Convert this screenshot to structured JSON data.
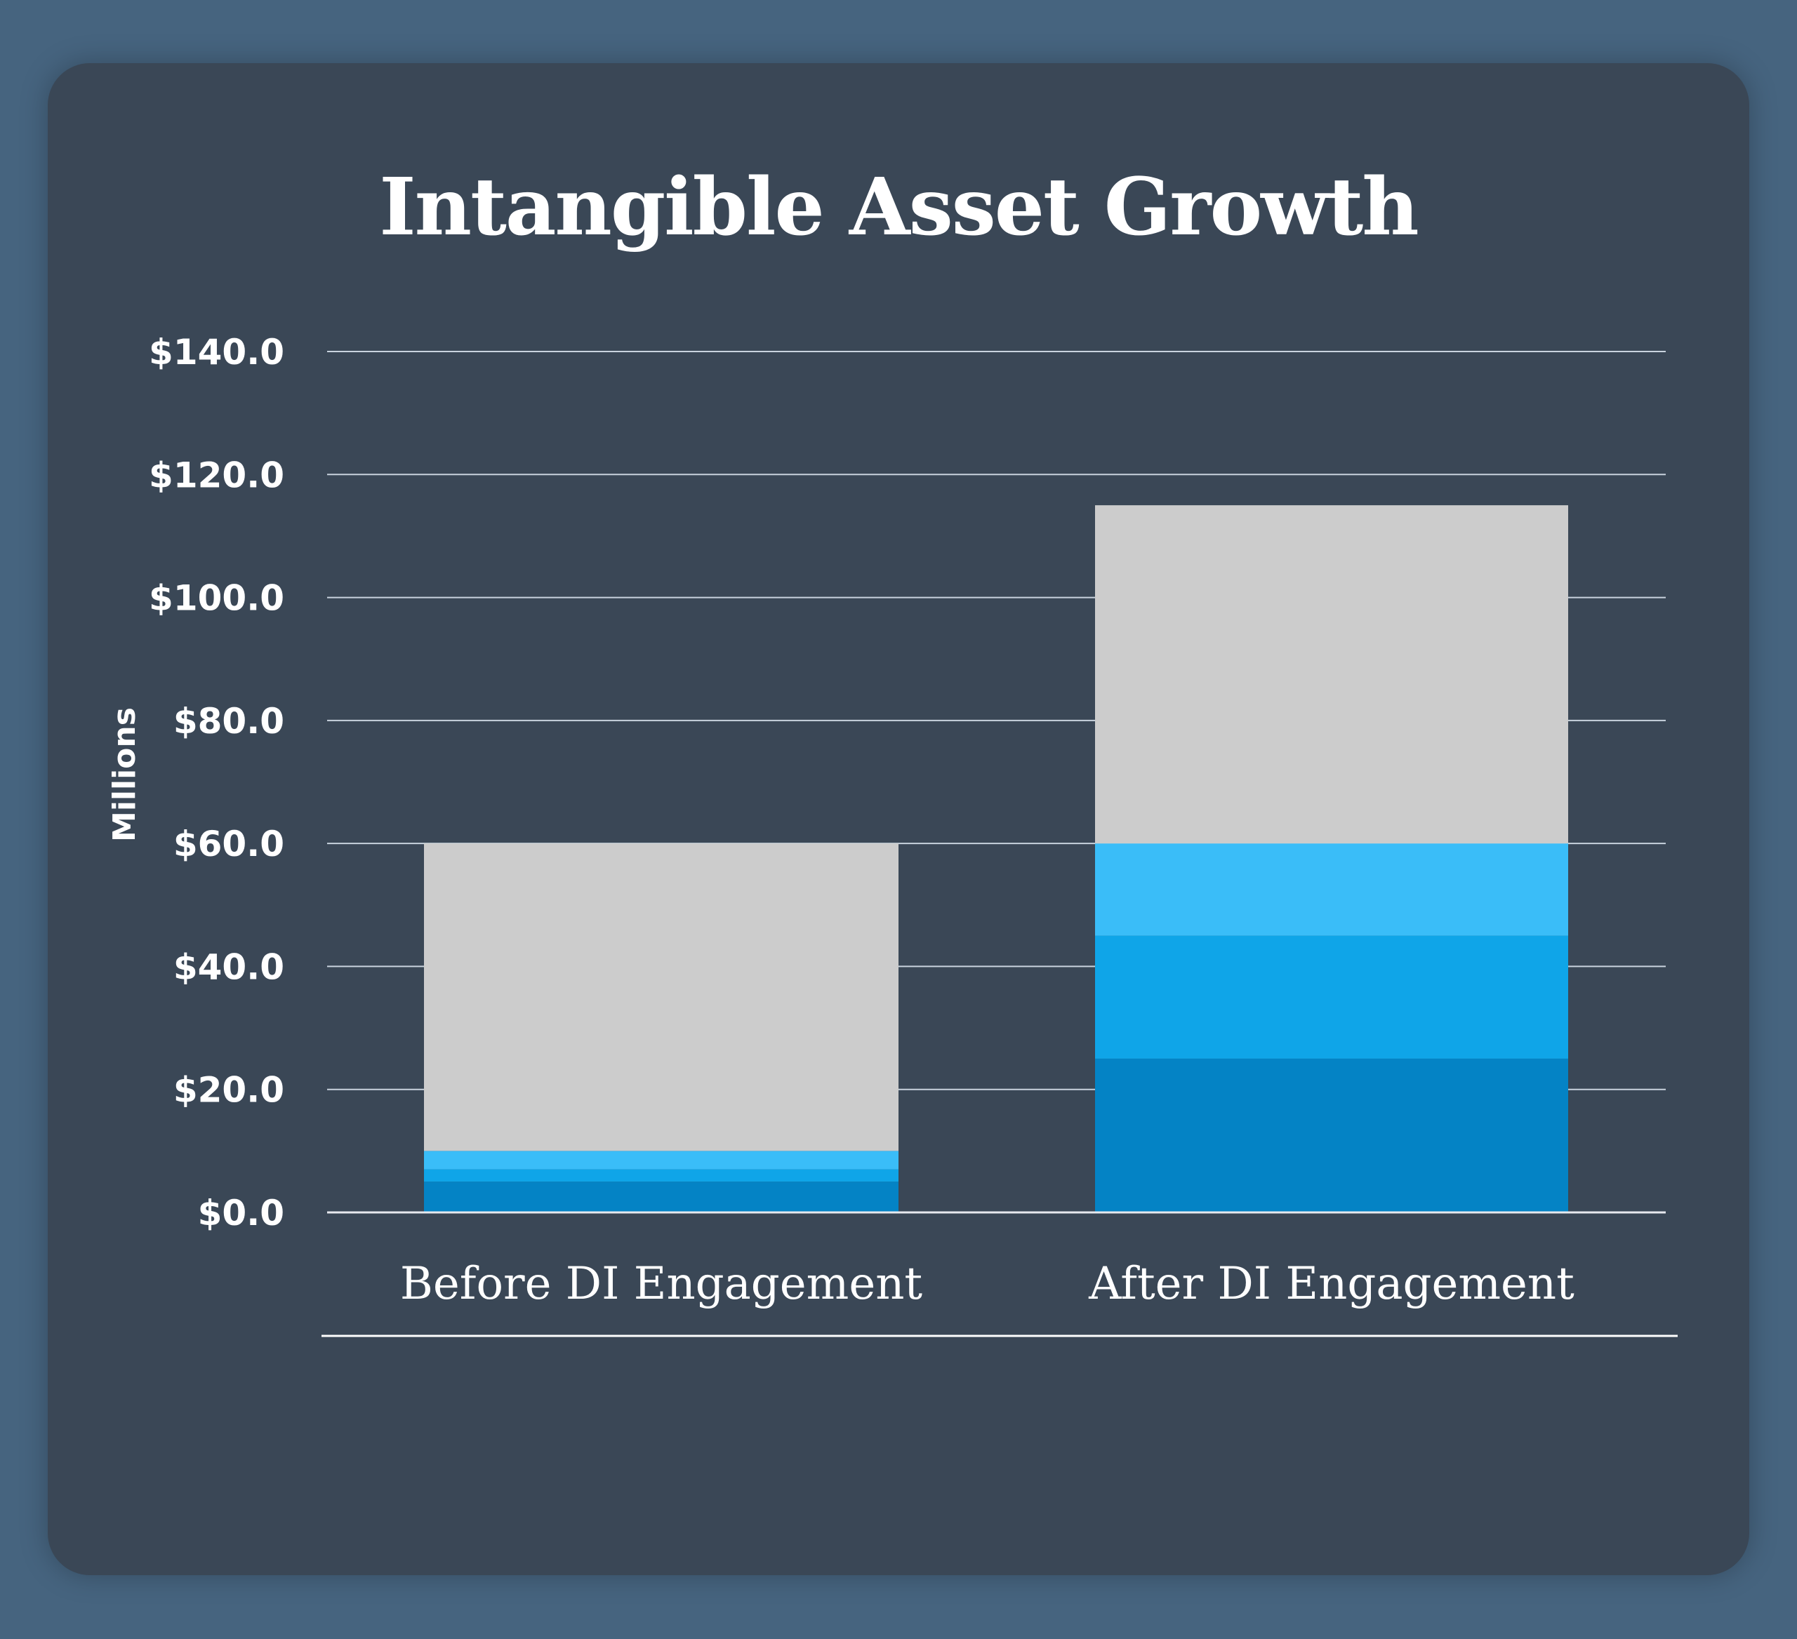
{
  "chart_data": {
    "type": "bar",
    "stacked": true,
    "title": "Intangible Asset Growth",
    "xlabel": "",
    "ylabel": "Millions",
    "ylim": [
      0,
      140
    ],
    "yticks": [
      0,
      20,
      40,
      60,
      80,
      100,
      120,
      140
    ],
    "ytick_labels": [
      "$0.0",
      "$20.0",
      "$40.0",
      "$60.0",
      "$80.0",
      "$100.0",
      "$120.0",
      "$140.0"
    ],
    "grid": true,
    "categories": [
      "Before DI Engagement",
      "After DI Engagement"
    ],
    "series": [
      {
        "values": [
          5,
          25
        ],
        "color": "#0483c5"
      },
      {
        "values": [
          2,
          20
        ],
        "color": "#0fa5e8"
      },
      {
        "values": [
          3,
          15
        ],
        "color": "#3abdf8"
      },
      {
        "values": [
          50,
          55
        ],
        "color": "#cccccc"
      }
    ]
  },
  "colors": {
    "background": "#46647f",
    "card": "#3a4756",
    "grid": "#c9d3de"
  }
}
